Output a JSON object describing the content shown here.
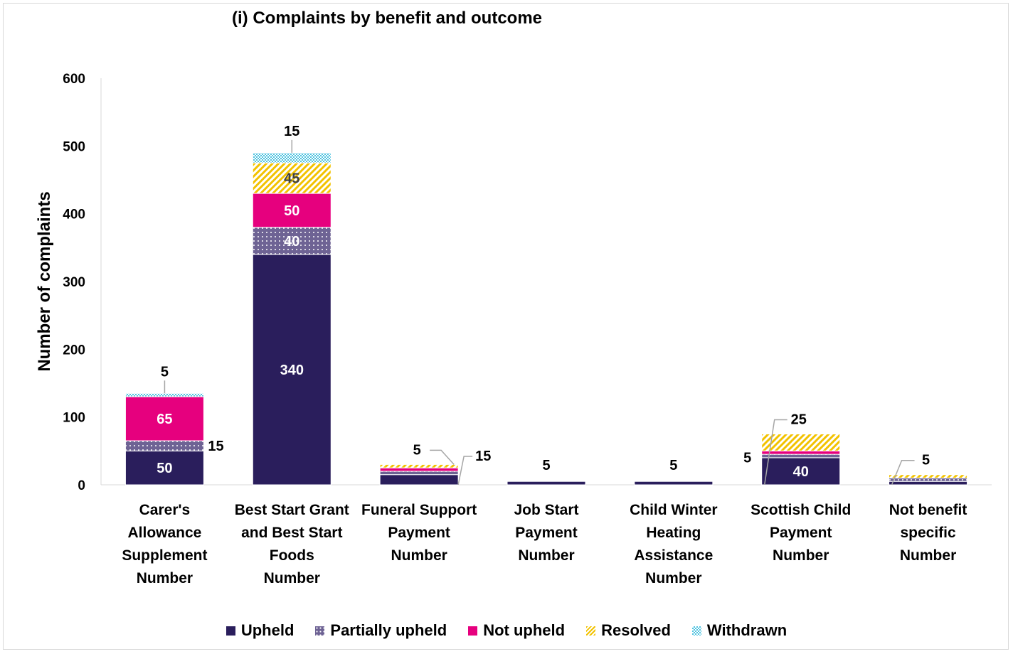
{
  "chart_data": {
    "type": "bar",
    "stacked": true,
    "title": "(i) Complaints by benefit and outcome",
    "ylabel": "Number of complaints",
    "xlabel": "",
    "ylim": [
      0,
      600
    ],
    "yticks": [
      0,
      100,
      200,
      300,
      400,
      500,
      600
    ],
    "grid": false,
    "legend_position": "bottom",
    "categories": [
      [
        "Carer's",
        "Allowance",
        "Supplement",
        "Number"
      ],
      [
        "Best Start Grant",
        "and Best Start",
        "Foods",
        "Number"
      ],
      [
        "Funeral Support",
        "Payment",
        "Number"
      ],
      [
        "Job Start",
        "Payment",
        "Number"
      ],
      [
        "Child Winter",
        "Heating",
        "Assistance",
        "Number"
      ],
      [
        "Scottish Child",
        "Payment",
        "Number"
      ],
      [
        "Not benefit",
        "specific",
        "Number"
      ]
    ],
    "series": [
      {
        "name": "Upheld",
        "color": "#2a1e5c",
        "pattern": "solid",
        "values": [
          50,
          340,
          15,
          5,
          5,
          40,
          5
        ],
        "labels": [
          "50",
          "340",
          "15",
          "5",
          "5",
          "40",
          ""
        ]
      },
      {
        "name": "Partially upheld",
        "color": "#7b6fa0",
        "pattern": "dots",
        "values": [
          15,
          40,
          5,
          0,
          0,
          5,
          5
        ],
        "labels": [
          "15",
          "40",
          "",
          "",
          "",
          "5",
          ""
        ]
      },
      {
        "name": "Not upheld",
        "color": "#e6007e",
        "pattern": "solid",
        "values": [
          65,
          50,
          5,
          0,
          0,
          5,
          0
        ],
        "labels": [
          "65",
          "50",
          "5",
          "",
          "",
          "",
          ""
        ]
      },
      {
        "name": "Resolved",
        "color": "#f2c200",
        "pattern": "hatch",
        "values": [
          0,
          45,
          5,
          0,
          0,
          25,
          5
        ],
        "labels": [
          "",
          "45",
          "",
          "",
          "",
          "25",
          "5"
        ]
      },
      {
        "name": "Withdrawn",
        "color": "#4fc3e0",
        "pattern": "checker",
        "values": [
          5,
          15,
          0,
          0,
          0,
          0,
          0
        ],
        "labels": [
          "5",
          "15",
          "",
          "",
          "",
          "",
          ""
        ]
      }
    ]
  }
}
